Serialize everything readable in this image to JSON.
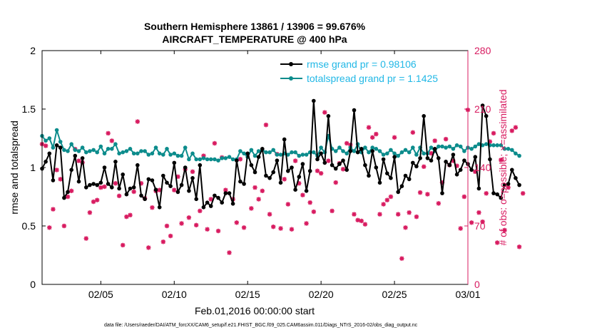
{
  "colors": {
    "rmse": "#000000",
    "spread": "#0c8c8c",
    "obs": "#d81b60",
    "legend_text": "#22b8e6",
    "axis": "#000000"
  },
  "chart_data": {
    "type": "line",
    "title_line1": "Southern Hemisphere 13861 / 13906 = 99.676%",
    "title_line2": "AIRCRAFT_TEMPERATURE @ 400 hPa",
    "xlabel": "Feb.01,2016 00:00:00 start",
    "ylabel_left": "rmse and totalspread",
    "ylabel_right": "# of obs: o=possible; ×=assimilated",
    "footnote": "data file: /Users/raeder/DAI/ATM_forcXX/CAM6_setup/f.e21.FHIST_BGC.f09_025.CAM6assim.011/Diags_NTrS_2016-02/obs_diag_output.nc",
    "xlim": [
      1,
      30
    ],
    "ylim_left": [
      0,
      2
    ],
    "ylim_right": [
      0,
      280
    ],
    "x_ticks": [
      5,
      10,
      15,
      20,
      25,
      30
    ],
    "x_tick_labels": [
      "02/05",
      "02/10",
      "02/15",
      "02/20",
      "02/25",
      "03/01"
    ],
    "y_ticks_left": [
      0,
      0.5,
      1,
      1.5,
      2
    ],
    "y_tick_labels_left": [
      "0",
      "0.5",
      "1",
      "1.5",
      "2"
    ],
    "y_ticks_right": [
      0,
      70,
      140,
      210,
      280
    ],
    "y_tick_labels_right": [
      "0",
      "70",
      "140",
      "210",
      "280"
    ],
    "legend": [
      {
        "name": "rmse",
        "label": "rmse grand pr = 0.98106"
      },
      {
        "name": "totalspread",
        "label": "totalspread grand pr = 1.1425"
      }
    ],
    "x_start": 1.0,
    "x_step": 0.25,
    "rmse": [
      0.99,
      1.05,
      1.12,
      0.89,
      1.19,
      1.17,
      0.74,
      0.79,
      0.98,
      1.1,
      0.88,
      1.08,
      0.83,
      0.85,
      0.86,
      0.85,
      0.87,
      1.0,
      0.86,
      0.83,
      1.05,
      0.82,
      0.94,
      0.77,
      0.82,
      0.83,
      1.02,
      0.76,
      0.73,
      0.9,
      0.89,
      0.81,
      0.66,
      0.93,
      0.87,
      0.84,
      1.04,
      0.79,
      0.85,
      1.0,
      0.8,
      0.91,
      0.73,
      1.02,
      0.66,
      0.7,
      0.67,
      0.76,
      0.74,
      0.7,
      0.78,
      0.78,
      0.69,
      1.06,
      0.88,
      0.86,
      1.12,
      1.02,
      0.96,
      1.09,
      1.16,
      0.93,
      0.91,
      0.96,
      1.06,
      0.87,
      1.24,
      0.97,
      1.0,
      0.81,
      0.92,
      1.03,
      0.8,
      0.97,
      1.57,
      1.07,
      1.12,
      1.04,
      1.44,
      1.02,
      0.99,
      1.03,
      1.06,
      0.98,
      1.14,
      1.49,
      1.13,
      1.16,
      1.02,
      0.93,
      1.14,
      1.0,
      0.87,
      1.07,
      0.95,
      0.91,
      1.09,
      0.79,
      0.84,
      0.93,
      0.9,
      1.04,
      1.01,
      1.08,
      1.44,
      1.08,
      1.06,
      1.16,
      1.08,
      0.78,
      1.05,
      1.02,
      1.11,
      0.94,
      0.98,
      1.06,
      1.03,
      0.98,
      1.09,
      0.82,
      1.53,
      1.44,
      1.07,
      0.78,
      0.77,
      0.74,
      0.85,
      0.86,
      0.98,
      0.91,
      0.85
    ],
    "totalspread": [
      1.27,
      1.23,
      1.25,
      1.17,
      1.32,
      1.22,
      1.15,
      1.14,
      1.2,
      1.15,
      1.14,
      1.17,
      1.13,
      1.14,
      1.15,
      1.13,
      1.18,
      1.12,
      1.16,
      1.16,
      1.2,
      1.12,
      1.13,
      1.14,
      1.16,
      1.12,
      1.12,
      1.14,
      1.14,
      1.11,
      1.12,
      1.17,
      1.12,
      1.11,
      1.16,
      1.11,
      1.12,
      1.1,
      1.1,
      1.17,
      1.07,
      1.12,
      1.07,
      1.07,
      1.08,
      1.07,
      1.07,
      1.07,
      1.06,
      1.08,
      1.08,
      1.09,
      1.07,
      1.07,
      1.14,
      1.12,
      1.09,
      1.15,
      1.1,
      1.14,
      1.15,
      1.13,
      1.13,
      1.15,
      1.11,
      1.11,
      1.12,
      1.11,
      1.13,
      1.13,
      1.1,
      1.11,
      1.11,
      1.13,
      1.13,
      1.1,
      1.17,
      1.13,
      1.27,
      1.16,
      1.14,
      1.17,
      1.14,
      1.12,
      1.17,
      1.14,
      1.2,
      1.13,
      1.17,
      1.13,
      1.17,
      1.16,
      1.14,
      1.11,
      1.12,
      1.15,
      1.12,
      1.1,
      1.13,
      1.15,
      1.13,
      1.17,
      1.11,
      1.17,
      1.12,
      1.12,
      1.17,
      1.14,
      1.18,
      1.18,
      1.17,
      1.18,
      1.16,
      1.19,
      1.18,
      1.14,
      1.17,
      1.16,
      1.18,
      1.2,
      1.19,
      1.2,
      1.19,
      1.19,
      1.19,
      1.19,
      1.16,
      1.16,
      1.15,
      1.12,
      1.1
    ],
    "obs_possible": [
      168,
      166,
      68,
      90,
      137,
      126,
      70,
      105,
      112,
      162,
      148,
      146,
      55,
      86,
      99,
      101,
      116,
      117,
      181,
      172,
      121,
      106,
      47,
      81,
      83,
      111,
      195,
      121,
      103,
      44,
      92,
      112,
      113,
      51,
      70,
      58,
      113,
      129,
      73,
      138,
      80,
      135,
      71,
      88,
      154,
      66,
      102,
      169,
      64,
      152,
      113,
      38,
      102,
      74,
      150,
      68,
      155,
      91,
      116,
      102,
      112,
      191,
      84,
      69,
      156,
      67,
      126,
      96,
      66,
      148,
      121,
      107,
      73,
      98,
      87,
      136,
      133,
      206,
      148,
      88,
      122,
      145,
      138,
      169,
      167,
      84,
      77,
      76,
      72,
      188,
      176,
      180,
      84,
      96,
      101,
      105,
      176,
      84,
      31,
      68,
      86,
      182,
      81,
      110,
      141,
      108,
      157,
      172,
      97,
      122,
      174,
      143,
      148,
      142,
      67,
      105,
      209,
      74,
      135,
      86,
      75,
      109,
      171,
      181,
      50,
      149,
      65,
      116,
      184,
      188,
      45,
      109
    ]
  }
}
